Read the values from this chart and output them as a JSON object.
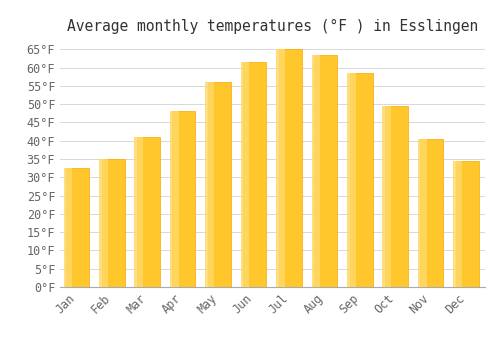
{
  "title": "Average monthly temperatures (°F ) in Esslingen",
  "months": [
    "Jan",
    "Feb",
    "Mar",
    "Apr",
    "May",
    "Jun",
    "Jul",
    "Aug",
    "Sep",
    "Oct",
    "Nov",
    "Dec"
  ],
  "values": [
    32.5,
    35.0,
    41.0,
    48.0,
    56.0,
    61.5,
    65.0,
    63.5,
    58.5,
    49.5,
    40.5,
    34.5
  ],
  "bar_color_main": "#FFC72C",
  "bar_color_light": "#FFD966",
  "bar_color_edge": "#FFA500",
  "background_color": "#FFFFFF",
  "plot_bg_color": "#FFFFFF",
  "grid_color": "#D8D8D8",
  "text_color": "#666666",
  "title_color": "#333333",
  "ylim": [
    0,
    67
  ],
  "yticks": [
    0,
    5,
    10,
    15,
    20,
    25,
    30,
    35,
    40,
    45,
    50,
    55,
    60,
    65
  ],
  "ytick_labels": [
    "0°F",
    "5°F",
    "10°F",
    "15°F",
    "20°F",
    "25°F",
    "30°F",
    "35°F",
    "40°F",
    "45°F",
    "50°F",
    "55°F",
    "60°F",
    "65°F"
  ],
  "title_fontsize": 10.5,
  "tick_fontsize": 8.5,
  "bar_width": 0.65
}
